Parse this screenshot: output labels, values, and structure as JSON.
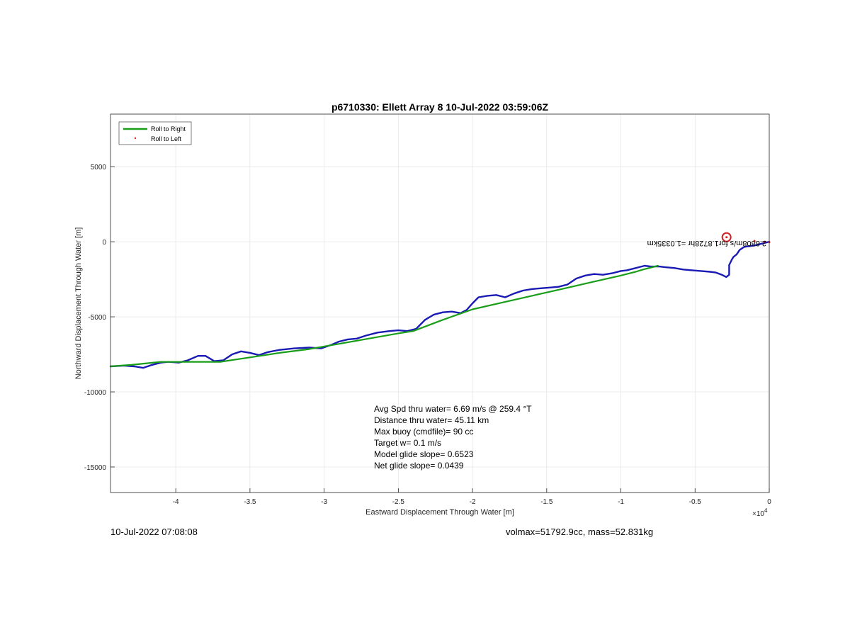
{
  "chart_data": {
    "type": "line",
    "title": "p6710330: Ellett Array 8 10-Jul-2022 03:59:06Z",
    "xlabel": "Eastward Displacement Through Water [m]",
    "ylabel": "Northward Displacement Through Water [m]",
    "x_exponent_label": "×10",
    "x_exponent_power": "4",
    "x_scale": 10000,
    "xlim": [
      -4.44,
      0
    ],
    "ylim": [
      -16700,
      8500
    ],
    "x_ticks": [
      -4,
      -3.5,
      -3,
      -2.5,
      -2,
      -1.5,
      -1,
      -0.5,
      0
    ],
    "x_tick_labels": [
      "-4",
      "-3.5",
      "-3",
      "-2.5",
      "-2",
      "-1.5",
      "-1",
      "-0.5",
      "0"
    ],
    "y_ticks": [
      5000,
      0,
      -5000,
      -10000,
      -15000
    ],
    "y_tick_labels": [
      "5000",
      "0",
      "-5000",
      "-10000",
      "-15000"
    ],
    "grid": true,
    "legend_position": "top-left",
    "legend": [
      {
        "label": "Roll to Right",
        "color": "#1a9e1a",
        "style": "line"
      },
      {
        "label": "Roll to Left",
        "color": "#e02020",
        "style": "dot"
      }
    ],
    "series": [
      {
        "name": "Roll to Right",
        "color": "#1a9e1a",
        "x": [
          -4.44,
          -4.3,
          -4.1,
          -3.9,
          -3.7,
          -3.5,
          -3.3,
          -3.1,
          -2.9,
          -2.7,
          -2.5,
          -2.4,
          -2.2,
          -2.0,
          -1.8,
          -1.6,
          -1.4,
          -1.2,
          -1.0,
          -0.9,
          -0.85,
          -0.75
        ],
        "y": [
          -8300,
          -8200,
          -8000,
          -8000,
          -8000,
          -7700,
          -7400,
          -7150,
          -6800,
          -6450,
          -6100,
          -5950,
          -5200,
          -4500,
          -4050,
          -3600,
          -3150,
          -2700,
          -2250,
          -2000,
          -1850,
          -1600
        ]
      },
      {
        "name": "",
        "color": "#1a1ab4",
        "x": [
          -4.44,
          -4.35,
          -4.28,
          -4.22,
          -4.16,
          -4.1,
          -4.05,
          -3.98,
          -3.92,
          -3.85,
          -3.8,
          -3.74,
          -3.68,
          -3.62,
          -3.56,
          -3.5,
          -3.44,
          -3.38,
          -3.3,
          -3.2,
          -3.1,
          -3.02,
          -2.96,
          -2.9,
          -2.84,
          -2.78,
          -2.72,
          -2.64,
          -2.56,
          -2.5,
          -2.44,
          -2.38,
          -2.32,
          -2.26,
          -2.2,
          -2.14,
          -2.08,
          -2.04,
          -2.0,
          -1.96,
          -1.9,
          -1.84,
          -1.78,
          -1.72,
          -1.66,
          -1.6,
          -1.54,
          -1.48,
          -1.42,
          -1.36,
          -1.3,
          -1.24,
          -1.18,
          -1.12,
          -1.06,
          -1.0,
          -0.96,
          -0.92,
          -0.88,
          -0.84,
          -0.8,
          -0.74,
          -0.7,
          -0.64,
          -0.58,
          -0.52,
          -0.46,
          -0.4,
          -0.36,
          -0.32,
          -0.29,
          -0.27,
          -0.27,
          -0.25,
          -0.24,
          -0.22,
          -0.2,
          -0.17,
          -0.14,
          -0.1,
          -0.06,
          -0.02,
          0.0
        ],
        "y": [
          -8300,
          -8250,
          -8300,
          -8400,
          -8200,
          -8050,
          -8000,
          -8050,
          -7900,
          -7600,
          -7600,
          -7950,
          -7900,
          -7500,
          -7300,
          -7400,
          -7550,
          -7350,
          -7200,
          -7100,
          -7050,
          -7100,
          -6900,
          -6650,
          -6500,
          -6450,
          -6250,
          -6050,
          -5950,
          -5900,
          -5950,
          -5800,
          -5200,
          -4850,
          -4700,
          -4650,
          -4750,
          -4550,
          -4100,
          -3700,
          -3600,
          -3550,
          -3700,
          -3450,
          -3250,
          -3150,
          -3100,
          -3050,
          -3000,
          -2850,
          -2450,
          -2250,
          -2150,
          -2200,
          -2100,
          -1950,
          -1900,
          -1800,
          -1700,
          -1600,
          -1650,
          -1650,
          -1700,
          -1750,
          -1850,
          -1900,
          -1950,
          -2000,
          -2050,
          -2200,
          -2350,
          -2200,
          -1550,
          -1150,
          -1000,
          -850,
          -550,
          -350,
          -300,
          -250,
          -150,
          -50,
          0
        ]
      }
    ],
    "markers": [
      {
        "name": "Roll to Left",
        "color": "#e02020",
        "x": [
          -0.288,
          -0.1,
          -0.03,
          0.0
        ],
        "y": [
          300,
          50,
          0,
          -30
        ]
      }
    ],
    "point_annotation": "2.8808m/s for1.8728hr =1.0335km",
    "stats": [
      "Avg Spd thru water=  6.69 m/s @ 259.4 °T",
      "Distance thru water= 45.11 km",
      "Max buoy (cmdfile)= 90 cc",
      "Target w= 0.1 m/s",
      "Model glide slope= 0.6523",
      "Net glide slope= 0.0439"
    ]
  },
  "footer": {
    "timestamp": "10-Jul-2022 07:08:08",
    "volume_mass": "volmax=51792.9cc, mass=52.831kg"
  }
}
